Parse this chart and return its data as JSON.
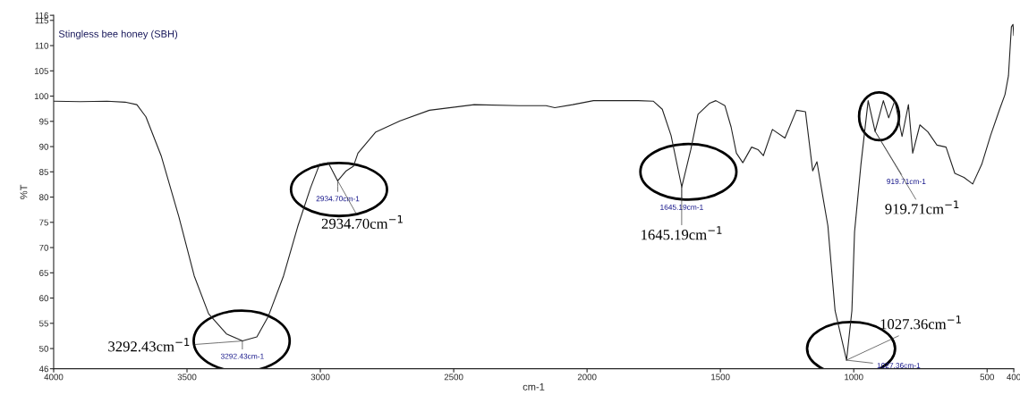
{
  "chart_data": {
    "type": "line",
    "xlabel": "cm-1",
    "ylabel": "%T",
    "xlim": [
      4000,
      400
    ],
    "ylim": [
      46,
      116
    ],
    "xticks": [
      4000,
      3500,
      3000,
      2500,
      2000,
      1500,
      1000,
      500,
      400
    ],
    "yticks": [
      46,
      50,
      55,
      60,
      65,
      70,
      75,
      80,
      85,
      90,
      95,
      100,
      105,
      110,
      115,
      116
    ],
    "grid": false,
    "marker": "none",
    "line_style": "solid",
    "series": [
      {
        "color": "#222222",
        "x": [
          4000,
          3900,
          3800,
          3732,
          3688,
          3654,
          3597,
          3530,
          3473,
          3419,
          3352,
          3292,
          3238,
          3195,
          3138,
          3084,
          3037,
          3003,
          2970,
          2935,
          2903,
          2876,
          2859,
          2792,
          2701,
          2591,
          2423,
          2255,
          2154,
          2121,
          2054,
          1976,
          1809,
          1752,
          1718,
          1685,
          1645,
          1611,
          1584,
          1540,
          1517,
          1483,
          1460,
          1440,
          1416,
          1383,
          1359,
          1339,
          1305,
          1258,
          1215,
          1181,
          1154,
          1138,
          1114,
          1097,
          1070,
          1027,
          1007,
          997,
          973,
          946,
          920,
          889,
          869,
          846,
          819,
          795,
          779,
          752,
          722,
          688,
          654,
          621,
          587,
          554,
          520,
          487,
          453,
          433,
          420,
          409,
          403,
          400
        ],
        "values": [
          99.0,
          98.9,
          99.0,
          98.8,
          98.3,
          95.9,
          88.2,
          76.0,
          64.4,
          56.9,
          52.9,
          51.5,
          52.3,
          56.4,
          64.4,
          74.3,
          81.8,
          86.5,
          86.8,
          83.2,
          85.2,
          86.1,
          88.7,
          92.9,
          95.1,
          97.2,
          98.3,
          98.1,
          98.1,
          97.7,
          98.3,
          99.1,
          99.1,
          99.0,
          97.4,
          92.2,
          82.0,
          89.4,
          96.4,
          98.6,
          99.1,
          98.1,
          93.9,
          88.7,
          86.8,
          89.9,
          89.4,
          88.2,
          93.4,
          91.7,
          97.2,
          96.9,
          85.2,
          87.0,
          79.5,
          74.3,
          57.5,
          47.7,
          57.5,
          73.1,
          86.5,
          99.1,
          93.0,
          99.1,
          95.7,
          99.1,
          92.0,
          98.3,
          88.7,
          94.3,
          92.9,
          90.3,
          89.9,
          84.7,
          83.9,
          82.6,
          86.5,
          92.2,
          97.4,
          100.3,
          104.0,
          113.7,
          114.2,
          112.0
        ]
      }
    ],
    "annotations": [
      "Stingless bee honey (SBH)",
      {
        "text": "3292.43cm-1",
        "x": 3292.43,
        "y": 51.5
      },
      {
        "text": "2934.70cm-1",
        "x": 2934.7,
        "y": 83.2
      },
      {
        "text": "1645.19cm-1",
        "x": 1645.19,
        "y": 82.0
      },
      {
        "text": "1027.36cm-1",
        "x": 1027.36,
        "y": 47.7
      },
      {
        "text": "919.71cm-1",
        "x": 919.71,
        "y": 93.0
      },
      {
        "text": "3292.43cm$^{−1}$",
        "x": 3292.43,
        "y": 51.5
      },
      {
        "text": "2934.70cm$^{−1}$",
        "x": 2934.7,
        "y": 83.2
      },
      {
        "text": "1645.19cm$^{−1}$",
        "x": 1645.19,
        "y": 82.0
      },
      {
        "text": "1027.36cm$^{−1}$",
        "x": 1027.36,
        "y": 47.7
      },
      {
        "text": "919.71cm$^{−1}$",
        "x": 919.71,
        "y": 93.0
      }
    ]
  }
}
